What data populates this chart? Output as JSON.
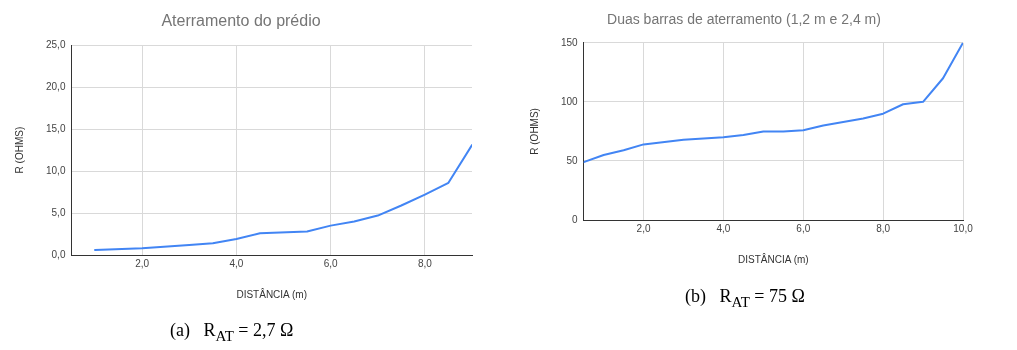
{
  "chart_data": [
    {
      "type": "line",
      "title": "Aterramento do prédio",
      "xlabel": "DISTÂNCIA (m)",
      "ylabel": "R (OHMS)",
      "x": [
        1,
        2,
        3,
        3.5,
        4,
        4.5,
        5.5,
        6,
        6.5,
        7,
        7.5,
        8,
        8.5,
        9
      ],
      "series": [
        {
          "color": "#4285f4",
          "values": [
            0.6,
            0.8,
            1.2,
            1.4,
            1.9,
            2.6,
            2.8,
            3.5,
            4.0,
            4.7,
            5.9,
            7.2,
            8.6,
            13.1
          ]
        }
      ],
      "xlim": [
        0.5,
        9
      ],
      "xticks": [
        {
          "value": 2,
          "label": "2,0"
        },
        {
          "value": 4,
          "label": "4,0"
        },
        {
          "value": 6,
          "label": "6,0"
        },
        {
          "value": 8,
          "label": "8,0"
        }
      ],
      "ylim": [
        0,
        25
      ],
      "yticks": [
        {
          "value": 0,
          "label": "0,0"
        },
        {
          "value": 5,
          "label": "5,0"
        },
        {
          "value": 10,
          "label": "10,0"
        },
        {
          "value": 15,
          "label": "15,0"
        },
        {
          "value": 20,
          "label": "20,0"
        },
        {
          "value": 25,
          "label": "25,0"
        }
      ],
      "grid": true,
      "legend": false,
      "marker": "none",
      "line_style": "solid",
      "annotations": [
        "(a)   R$_{AT}$ = 2,7 Ω"
      ]
    },
    {
      "type": "line",
      "title": "Duas barras de aterramento (1,2 m e 2,4 m)",
      "xlabel": "DISTÂNCIA (m)",
      "ylabel": "R (OHMS)",
      "x": [
        0.5,
        1,
        1.5,
        2,
        3,
        4,
        4.5,
        5,
        5.5,
        6,
        6.5,
        7,
        7.5,
        8,
        8.5,
        9,
        9.5,
        10
      ],
      "series": [
        {
          "color": "#4285f4",
          "values": [
            49,
            55,
            59,
            64,
            68,
            70,
            72,
            75,
            75,
            76,
            80,
            83,
            86,
            90,
            98,
            100,
            120,
            150
          ]
        }
      ],
      "xlim": [
        0.5,
        10
      ],
      "xticks": [
        {
          "value": 2,
          "label": "2,0"
        },
        {
          "value": 4,
          "label": "4,0"
        },
        {
          "value": 6,
          "label": "6,0"
        },
        {
          "value": 8,
          "label": "8,0"
        },
        {
          "value": 10,
          "label": "10,0"
        }
      ],
      "ylim": [
        0,
        150
      ],
      "yticks": [
        0,
        50,
        100,
        150
      ],
      "grid": true,
      "legend": false,
      "marker": "none",
      "line_style": "solid",
      "annotations": [
        "(b)   R$_{AT}$ = 75 Ω"
      ]
    }
  ]
}
